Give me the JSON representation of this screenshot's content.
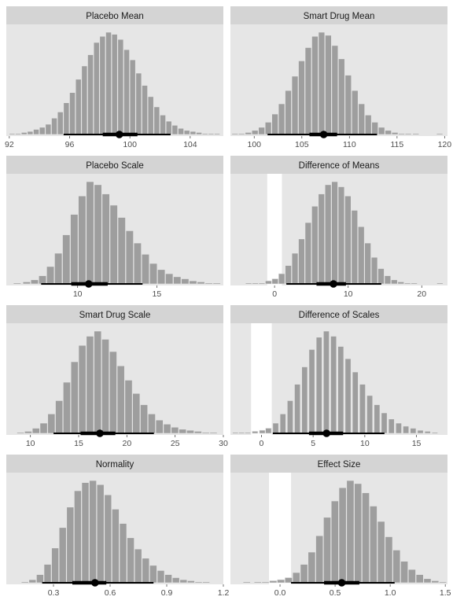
{
  "colors": {
    "panel_bg": "#e6e6e6",
    "strip_bg": "#d4d4d4",
    "bar": "#9e9e9e",
    "rope": "#ffffff",
    "interval": "#000000",
    "tick": "#4d4d4d"
  },
  "chart_data": [
    {
      "type": "bar",
      "title": "Placebo Mean",
      "xlim": [
        91.8,
        106.2
      ],
      "xticks": [
        92,
        96,
        100,
        104
      ],
      "bins": [
        [
          92.2,
          1
        ],
        [
          92.6,
          1
        ],
        [
          93.0,
          2
        ],
        [
          93.4,
          3
        ],
        [
          93.8,
          5
        ],
        [
          94.2,
          7
        ],
        [
          94.6,
          10
        ],
        [
          95.0,
          16
        ],
        [
          95.4,
          22
        ],
        [
          95.8,
          31
        ],
        [
          96.2,
          41
        ],
        [
          96.6,
          54
        ],
        [
          97.0,
          67
        ],
        [
          97.4,
          78
        ],
        [
          97.8,
          90
        ],
        [
          98.2,
          96
        ],
        [
          98.6,
          100
        ],
        [
          99.0,
          98
        ],
        [
          99.4,
          93
        ],
        [
          99.8,
          83
        ],
        [
          100.2,
          73
        ],
        [
          100.6,
          60
        ],
        [
          101.0,
          48
        ],
        [
          101.4,
          37
        ],
        [
          101.8,
          27
        ],
        [
          102.2,
          19
        ],
        [
          102.6,
          13
        ],
        [
          103.0,
          9
        ],
        [
          103.4,
          6
        ],
        [
          103.8,
          4
        ],
        [
          104.2,
          3
        ],
        [
          104.6,
          2
        ],
        [
          105.0,
          1
        ],
        [
          105.4,
          1
        ],
        [
          105.8,
          1
        ]
      ],
      "point": 99.3,
      "inner": [
        98.2,
        100.5
      ],
      "outer": [
        95.6,
        102.7
      ],
      "rope": null
    },
    {
      "type": "bar",
      "title": "Smart Drug Mean",
      "xlim": [
        97.5,
        120.3
      ],
      "xticks": [
        100,
        105,
        110,
        115,
        120
      ],
      "bins": [
        [
          98,
          1
        ],
        [
          98.7,
          1
        ],
        [
          99.4,
          2
        ],
        [
          100.1,
          4
        ],
        [
          100.8,
          7
        ],
        [
          101.5,
          12
        ],
        [
          102.2,
          20
        ],
        [
          102.9,
          30
        ],
        [
          103.6,
          43
        ],
        [
          104.3,
          57
        ],
        [
          105.0,
          72
        ],
        [
          105.7,
          85
        ],
        [
          106.4,
          96
        ],
        [
          107.1,
          100
        ],
        [
          107.8,
          97
        ],
        [
          108.5,
          87
        ],
        [
          109.2,
          74
        ],
        [
          109.9,
          58
        ],
        [
          110.6,
          43
        ],
        [
          111.3,
          30
        ],
        [
          112.0,
          19
        ],
        [
          112.7,
          12
        ],
        [
          113.4,
          7
        ],
        [
          114.1,
          4
        ],
        [
          114.8,
          2
        ],
        [
          115.5,
          1
        ],
        [
          116.2,
          1
        ],
        [
          117,
          1
        ],
        [
          118,
          0
        ],
        [
          119.5,
          1
        ]
      ],
      "point": 107.3,
      "inner": [
        105.8,
        108.7
      ],
      "outer": [
        101.4,
        112.9
      ],
      "rope": null
    },
    {
      "type": "bar",
      "title": "Placebo Scale",
      "xlim": [
        5.5,
        19.2
      ],
      "xticks": [
        10,
        15
      ],
      "bins": [
        [
          6.2,
          1
        ],
        [
          6.8,
          2
        ],
        [
          7.3,
          4
        ],
        [
          7.8,
          8
        ],
        [
          8.3,
          17
        ],
        [
          8.8,
          30
        ],
        [
          9.3,
          48
        ],
        [
          9.8,
          68
        ],
        [
          10.3,
          86
        ],
        [
          10.8,
          100
        ],
        [
          11.3,
          97
        ],
        [
          11.8,
          88
        ],
        [
          12.3,
          77
        ],
        [
          12.8,
          65
        ],
        [
          13.3,
          52
        ],
        [
          13.8,
          40
        ],
        [
          14.3,
          29
        ],
        [
          14.8,
          20
        ],
        [
          15.3,
          14
        ],
        [
          15.8,
          10
        ],
        [
          16.3,
          7
        ],
        [
          16.8,
          5
        ],
        [
          17.3,
          3
        ],
        [
          17.8,
          2
        ],
        [
          18.3,
          1
        ],
        [
          18.8,
          1
        ]
      ],
      "point": 10.7,
      "inner": [
        9.6,
        11.9
      ],
      "outer": [
        7.7,
        14.1
      ],
      "rope": null
    },
    {
      "type": "bar",
      "title": "Difference of Means",
      "xlim": [
        -6.0,
        23.5
      ],
      "xticks": [
        0,
        10,
        20
      ],
      "bins": [
        [
          -3.5,
          1
        ],
        [
          -2.6,
          1
        ],
        [
          -1.7,
          1
        ],
        [
          -0.8,
          3
        ],
        [
          0.1,
          5
        ],
        [
          1.0,
          10
        ],
        [
          1.9,
          18
        ],
        [
          2.8,
          30
        ],
        [
          3.7,
          44
        ],
        [
          4.6,
          60
        ],
        [
          5.5,
          76
        ],
        [
          6.4,
          88
        ],
        [
          7.3,
          97
        ],
        [
          8.2,
          100
        ],
        [
          9.1,
          95
        ],
        [
          10.0,
          86
        ],
        [
          10.9,
          72
        ],
        [
          11.8,
          56
        ],
        [
          12.7,
          40
        ],
        [
          13.6,
          26
        ],
        [
          14.5,
          15
        ],
        [
          15.4,
          8
        ],
        [
          16.3,
          4
        ],
        [
          17.2,
          2
        ],
        [
          18.1,
          1
        ],
        [
          19,
          1
        ],
        [
          22.5,
          1
        ]
      ],
      "point": 8.0,
      "inner": [
        5.7,
        9.7
      ],
      "outer": [
        1.6,
        14.5
      ],
      "rope": [
        -1.0,
        1.0
      ]
    },
    {
      "type": "bar",
      "title": "Smart Drug Scale",
      "xlim": [
        7.5,
        30.0
      ],
      "xticks": [
        10,
        15,
        20,
        25,
        30
      ],
      "bins": [
        [
          9.0,
          1
        ],
        [
          9.8,
          2
        ],
        [
          10.6,
          5
        ],
        [
          11.4,
          10
        ],
        [
          12.2,
          19
        ],
        [
          13.0,
          32
        ],
        [
          13.8,
          50
        ],
        [
          14.6,
          70
        ],
        [
          15.4,
          86
        ],
        [
          16.2,
          95
        ],
        [
          17.0,
          100
        ],
        [
          17.8,
          92
        ],
        [
          18.6,
          80
        ],
        [
          19.4,
          66
        ],
        [
          20.2,
          52
        ],
        [
          21.0,
          39
        ],
        [
          21.8,
          28
        ],
        [
          22.6,
          19
        ],
        [
          23.4,
          13
        ],
        [
          24.2,
          9
        ],
        [
          25.0,
          6
        ],
        [
          25.8,
          4
        ],
        [
          26.6,
          3
        ],
        [
          27.4,
          2
        ],
        [
          28.2,
          1
        ],
        [
          29.0,
          1
        ]
      ],
      "point": 17.2,
      "inner": [
        15.2,
        18.8
      ],
      "outer": [
        12.4,
        22.8
      ],
      "rope": null
    },
    {
      "type": "bar",
      "title": "Difference of Scales",
      "xlim": [
        -3.0,
        18.0
      ],
      "xticks": [
        0,
        5,
        10,
        15
      ],
      "bins": [
        [
          -2.5,
          1
        ],
        [
          -1.9,
          1
        ],
        [
          -1.3,
          1
        ],
        [
          -0.6,
          2
        ],
        [
          0.1,
          3
        ],
        [
          0.7,
          5
        ],
        [
          1.4,
          10
        ],
        [
          2.1,
          19
        ],
        [
          2.8,
          32
        ],
        [
          3.5,
          48
        ],
        [
          4.2,
          65
        ],
        [
          4.9,
          82
        ],
        [
          5.6,
          94
        ],
        [
          6.3,
          100
        ],
        [
          7.0,
          95
        ],
        [
          7.7,
          85
        ],
        [
          8.4,
          73
        ],
        [
          9.1,
          60
        ],
        [
          9.8,
          48
        ],
        [
          10.5,
          37
        ],
        [
          11.2,
          28
        ],
        [
          11.9,
          20
        ],
        [
          12.6,
          14
        ],
        [
          13.3,
          10
        ],
        [
          14.0,
          7
        ],
        [
          14.7,
          5
        ],
        [
          15.4,
          3
        ],
        [
          16.1,
          2
        ],
        [
          16.8,
          1
        ]
      ],
      "point": 6.3,
      "inner": [
        4.6,
        7.9
      ],
      "outer": [
        1.1,
        11.9
      ],
      "rope": [
        -1.0,
        1.0
      ]
    },
    {
      "type": "bar",
      "title": "Normality",
      "xlim": [
        0.05,
        1.2
      ],
      "xticks": [
        0.3,
        0.6,
        0.9,
        1.2
      ],
      "bins": [
        [
          0.15,
          1
        ],
        [
          0.19,
          3
        ],
        [
          0.23,
          8
        ],
        [
          0.27,
          18
        ],
        [
          0.31,
          34
        ],
        [
          0.35,
          54
        ],
        [
          0.39,
          74
        ],
        [
          0.43,
          90
        ],
        [
          0.47,
          98
        ],
        [
          0.51,
          100
        ],
        [
          0.55,
          96
        ],
        [
          0.59,
          86
        ],
        [
          0.63,
          72
        ],
        [
          0.67,
          58
        ],
        [
          0.71,
          44
        ],
        [
          0.75,
          33
        ],
        [
          0.79,
          24
        ],
        [
          0.83,
          17
        ],
        [
          0.87,
          12
        ],
        [
          0.91,
          8
        ],
        [
          0.95,
          5
        ],
        [
          0.99,
          3
        ],
        [
          1.03,
          2
        ],
        [
          1.07,
          1
        ],
        [
          1.11,
          1
        ]
      ],
      "point": 0.52,
      "inner": [
        0.4,
        0.58
      ],
      "outer": [
        0.24,
        0.83
      ],
      "rope": null
    },
    {
      "type": "bar",
      "title": "Effect Size",
      "xlim": [
        -0.45,
        1.52
      ],
      "xticks": [
        0.0,
        0.5,
        1.0,
        1.5
      ],
      "bins": [
        [
          -0.3,
          1
        ],
        [
          -0.2,
          1
        ],
        [
          -0.13,
          1
        ],
        [
          -0.06,
          2
        ],
        [
          0.01,
          3
        ],
        [
          0.08,
          5
        ],
        [
          0.15,
          10
        ],
        [
          0.22,
          18
        ],
        [
          0.29,
          30
        ],
        [
          0.36,
          46
        ],
        [
          0.43,
          64
        ],
        [
          0.5,
          80
        ],
        [
          0.57,
          93
        ],
        [
          0.64,
          100
        ],
        [
          0.71,
          97
        ],
        [
          0.78,
          88
        ],
        [
          0.85,
          75
        ],
        [
          0.92,
          60
        ],
        [
          0.99,
          45
        ],
        [
          1.06,
          32
        ],
        [
          1.13,
          21
        ],
        [
          1.2,
          13
        ],
        [
          1.27,
          8
        ],
        [
          1.34,
          4
        ],
        [
          1.41,
          2
        ],
        [
          1.48,
          1
        ]
      ],
      "point": 0.56,
      "inner": [
        0.4,
        0.72
      ],
      "outer": [
        0.1,
        1.04
      ],
      "rope": [
        -0.1,
        0.1
      ]
    }
  ]
}
